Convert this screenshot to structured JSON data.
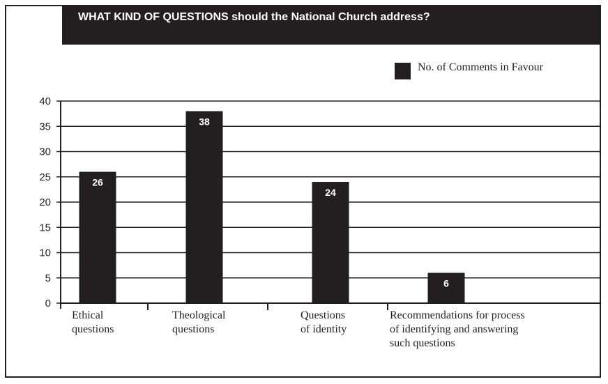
{
  "chart_data": {
    "type": "bar",
    "title": "WHAT KIND OF QUESTIONS should the National Church address?",
    "xlabel": "",
    "ylabel": "",
    "ylim": [
      0,
      40
    ],
    "yticks": [
      0,
      5,
      10,
      15,
      20,
      25,
      30,
      35,
      40
    ],
    "grid": true,
    "legend_position": "top-right",
    "categories": [
      "Ethical\nquestions",
      "Theological\nquestions",
      "Questions\nof identity",
      "Recommendations for process\nof identifying and answering\nsuch questions"
    ],
    "series": [
      {
        "name": "No. of Comments in Favour",
        "values": [
          26,
          38,
          24,
          6
        ]
      }
    ]
  },
  "colors": {
    "ink": "#231f20",
    "background": "#ffffff",
    "bar_label": "#ffffff"
  }
}
